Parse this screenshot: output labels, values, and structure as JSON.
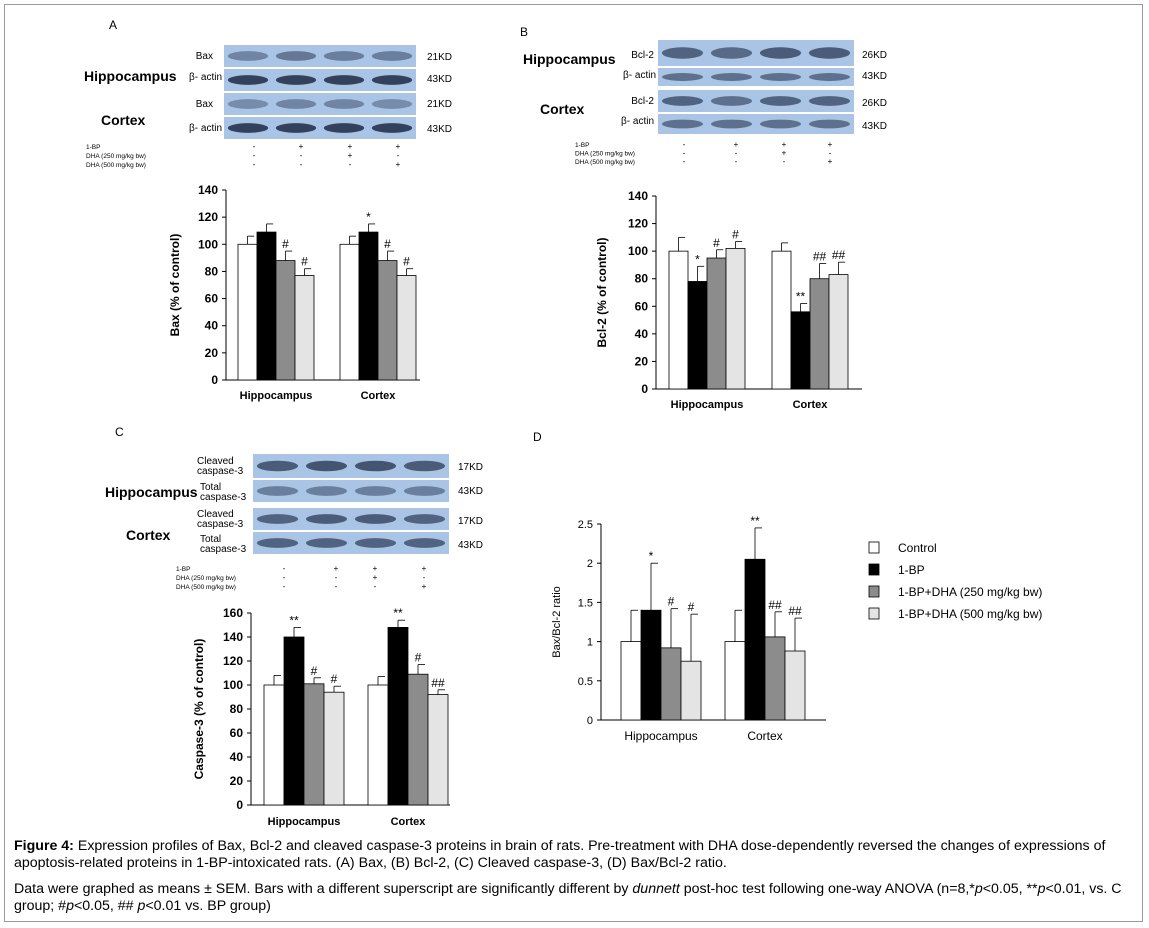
{
  "figure": {
    "caption_bold": "Figure 4:",
    "caption_text": " Expression profiles of Bax, Bcl-2 and cleaved caspase-3 proteins in brain of rats. Pre-treatment with DHA dose-dependently reversed the changes of expressions of apoptosis-related proteins in 1-BP-intoxicated rats. (A) Bax, (B) Bcl-2, (C) Cleaved caspase-3, (D) Bax/Bcl-2 ratio.",
    "note_1": "Data were graphed as means ± SEM. Bars with a different superscript are significantly different by ",
    "note_dunnett": "dunnett",
    "note_2": " post-hoc test following one-way ANOVA (n=8,*",
    "note_p1": "p",
    "note_3": "<0.05, **",
    "note_p2": "p",
    "note_4": "<0.01, vs. C group; #",
    "note_p3": "p",
    "note_5": "<0.05, ## ",
    "note_p4": "p",
    "note_6": "<0.01 vs. BP group)"
  },
  "colors": {
    "control": "#ffffff",
    "bp": "#000000",
    "dha250": "#8c8c8c",
    "dha500": "#e4e4e4",
    "blot_bg": "#a9c4e4",
    "band": "#2b3a55"
  },
  "legend": [
    "Control",
    "1-BP",
    "1-BP+DHA (250 mg/kg bw)",
    "1-BP+DHA (500 mg/kg bw)"
  ],
  "treatment_rows": {
    "labels": [
      "1-BP",
      "DHA (250 mg/kg bw)",
      "DHA (500 mg/kg bw)"
    ],
    "signs": [
      [
        "-",
        "+",
        "+",
        "+"
      ],
      [
        "-",
        "-",
        "+",
        "-"
      ],
      [
        "-",
        "-",
        "-",
        "+"
      ]
    ]
  },
  "panels": {
    "A": {
      "letter": "A",
      "region1": "Hippocampus",
      "region2": "Cortex",
      "blots": [
        {
          "label": "Bax",
          "kd": "21KD"
        },
        {
          "label": "β- actin",
          "kd": "43KD"
        },
        {
          "label": "Bax",
          "kd": "21KD"
        },
        {
          "label": "β- actin",
          "kd": "43KD"
        }
      ]
    },
    "B": {
      "letter": "B",
      "region1": "Hippocampus",
      "region2": "Cortex",
      "blots": [
        {
          "label": "Bcl-2",
          "kd": "26KD"
        },
        {
          "label": "β- actin",
          "kd": "43KD"
        },
        {
          "label": "Bcl-2",
          "kd": "26KD"
        },
        {
          "label": "β- actin",
          "kd": "43KD"
        }
      ]
    },
    "C": {
      "letter": "C",
      "region1": "Hippocampus",
      "region2": "Cortex",
      "blots": [
        {
          "label": "Cleaved caspase-3",
          "kd": "17KD"
        },
        {
          "label": "Total caspase-3",
          "kd": "43KD"
        },
        {
          "label": "Cleaved caspase-3",
          "kd": "17KD"
        },
        {
          "label": "Total caspase-3",
          "kd": "43KD"
        }
      ]
    },
    "D": {
      "letter": "D"
    }
  },
  "chart_data": [
    {
      "type": "bar",
      "panel": "A",
      "categories": [
        "Hippocampus",
        "Cortex"
      ],
      "ylabel": "Bax (% of control)",
      "ylim": [
        0,
        140
      ],
      "yticks": [
        "0",
        "20",
        "40",
        "60",
        "80",
        "100",
        "120",
        "140"
      ],
      "series": [
        {
          "name": "Control",
          "values": [
            100,
            100
          ],
          "err": [
            6,
            6
          ],
          "marks": [
            "",
            ""
          ]
        },
        {
          "name": "1-BP",
          "values": [
            109,
            109
          ],
          "err": [
            6,
            6
          ],
          "marks": [
            "",
            "*"
          ]
        },
        {
          "name": "1-BP+DHA (250 mg/kg bw)",
          "values": [
            88,
            88
          ],
          "err": [
            7,
            7
          ],
          "marks": [
            "#",
            "#"
          ]
        },
        {
          "name": "1-BP+DHA (500 mg/kg bw)",
          "values": [
            77,
            77
          ],
          "err": [
            5,
            5
          ],
          "marks": [
            "#",
            "#"
          ]
        }
      ]
    },
    {
      "type": "bar",
      "panel": "B",
      "categories": [
        "Hippocampus",
        "Cortex"
      ],
      "ylabel": "Bcl-2 (% of control)",
      "ylim": [
        0,
        140
      ],
      "yticks": [
        "0",
        "20",
        "40",
        "60",
        "80",
        "100",
        "120",
        "140"
      ],
      "series": [
        {
          "name": "Control",
          "values": [
            100,
            100
          ],
          "err": [
            10,
            6
          ],
          "marks": [
            "",
            ""
          ]
        },
        {
          "name": "1-BP",
          "values": [
            78,
            56
          ],
          "err": [
            11,
            6
          ],
          "marks": [
            "*",
            "**"
          ]
        },
        {
          "name": "1-BP+DHA (250 mg/kg bw)",
          "values": [
            95,
            80
          ],
          "err": [
            6,
            11
          ],
          "marks": [
            "#",
            "##"
          ]
        },
        {
          "name": "1-BP+DHA (500 mg/kg bw)",
          "values": [
            102,
            83
          ],
          "err": [
            5,
            9
          ],
          "marks": [
            "#",
            "##"
          ]
        }
      ]
    },
    {
      "type": "bar",
      "panel": "C",
      "categories": [
        "Hippocampus",
        "Cortex"
      ],
      "ylabel": "Caspase-3 (% of control)",
      "ylim": [
        0,
        160
      ],
      "yticks": [
        "0",
        "20",
        "40",
        "60",
        "80",
        "100",
        "120",
        "140",
        "160"
      ],
      "series": [
        {
          "name": "Control",
          "values": [
            100,
            100
          ],
          "err": [
            8,
            7
          ],
          "marks": [
            "",
            ""
          ]
        },
        {
          "name": "1-BP",
          "values": [
            140,
            148
          ],
          "err": [
            8,
            6
          ],
          "marks": [
            "**",
            "**"
          ]
        },
        {
          "name": "1-BP+DHA (250 mg/kg bw)",
          "values": [
            101,
            109
          ],
          "err": [
            5,
            8
          ],
          "marks": [
            "#",
            "#"
          ]
        },
        {
          "name": "1-BP+DHA (500 mg/kg bw)",
          "values": [
            94,
            92
          ],
          "err": [
            5,
            4
          ],
          "marks": [
            "#",
            "##"
          ]
        }
      ]
    },
    {
      "type": "bar",
      "panel": "D",
      "categories": [
        "Hippocampus",
        "Cortex"
      ],
      "ylabel": "Bax/Bcl-2 ratio",
      "ylim": [
        0,
        2.5
      ],
      "yticks": [
        "0",
        "0.5",
        "1",
        "1.5",
        "2",
        "2.5"
      ],
      "series": [
        {
          "name": "Control",
          "values": [
            1.0,
            1.0
          ],
          "err": [
            0.4,
            0.4
          ],
          "marks": [
            "",
            ""
          ]
        },
        {
          "name": "1-BP",
          "values": [
            1.4,
            2.05
          ],
          "err": [
            0.6,
            0.4
          ],
          "marks": [
            "*",
            "**"
          ]
        },
        {
          "name": "1-BP+DHA (250 mg/kg bw)",
          "values": [
            0.92,
            1.06
          ],
          "err": [
            0.5,
            0.32
          ],
          "marks": [
            "#",
            "##"
          ]
        },
        {
          "name": "1-BP+DHA (500 mg/kg bw)",
          "values": [
            0.75,
            0.88
          ],
          "err": [
            0.6,
            0.42
          ],
          "marks": [
            "#",
            "##"
          ]
        }
      ]
    }
  ]
}
